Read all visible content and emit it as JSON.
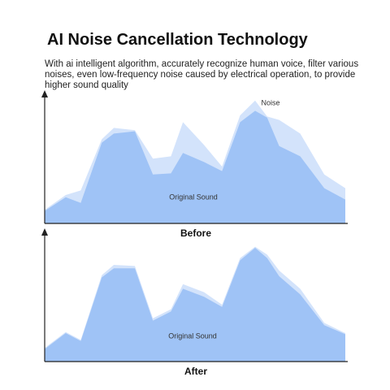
{
  "header": {
    "title": "AI Noise Cancellation Technology",
    "description": "With ai intelligent algorithm, accurately recognize human voice, filter various noises, even low-frequency noise caused by electrical operation, to provide higher sound quality"
  },
  "chart_data": [
    {
      "type": "area",
      "title": "Before",
      "xlim": [
        0,
        100
      ],
      "ylim": [
        0,
        110
      ],
      "x": [
        0,
        7,
        12,
        19,
        23,
        30,
        36,
        42,
        46,
        53,
        59,
        65,
        70,
        74,
        78,
        85,
        93,
        100
      ],
      "series": [
        {
          "name": "Noise",
          "color": "#d3e3fb",
          "values": [
            12,
            25,
            29,
            74,
            84,
            82,
            57,
            59,
            89,
            69,
            50,
            95,
            108,
            94,
            91,
            79,
            43,
            31
          ]
        },
        {
          "name": "Original Sound",
          "color": "#9fc3f6",
          "values": [
            11,
            23,
            18,
            71,
            79,
            81,
            43,
            44,
            62,
            54,
            46,
            89,
            99,
            93,
            68,
            59,
            31,
            21
          ]
        }
      ]
    },
    {
      "type": "area",
      "title": "After",
      "xlim": [
        0,
        100
      ],
      "ylim": [
        0,
        110
      ],
      "x": [
        0,
        7,
        12,
        19,
        23,
        30,
        36,
        42,
        46,
        53,
        59,
        65,
        70,
        74,
        78,
        85,
        93,
        100
      ],
      "series": [
        {
          "color": "#d3e3fb",
          "values": [
            12,
            26,
            19,
            76,
            85,
            84,
            38,
            46,
            68,
            61,
            50,
            91,
            101,
            94,
            80,
            64,
            34,
            25
          ]
        },
        {
          "name": "Original Sound",
          "color": "#9fc3f6",
          "values": [
            11,
            25,
            18,
            74,
            82,
            82,
            36,
            44,
            64,
            57,
            48,
            89,
            100,
            91,
            75,
            59,
            32,
            24
          ]
        }
      ]
    }
  ]
}
